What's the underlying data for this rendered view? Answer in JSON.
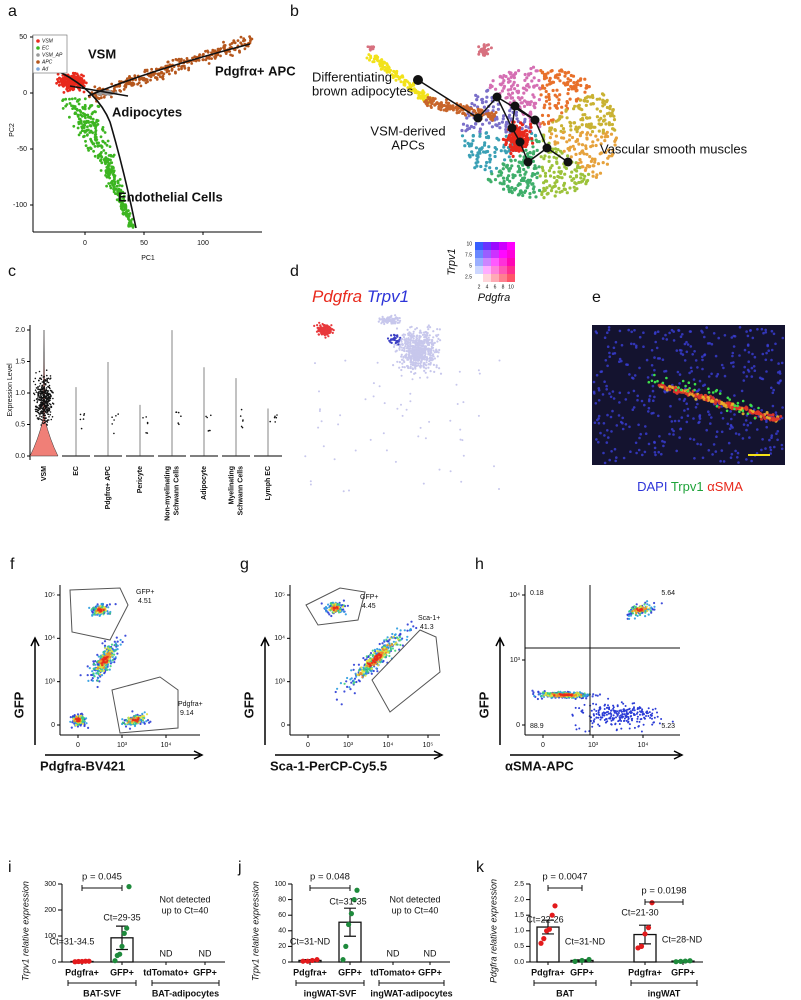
{
  "figure": {
    "a": {
      "letter": "a",
      "legend": [
        {
          "name": "VSM",
          "color": "#e8291c"
        },
        {
          "name": "EC",
          "color": "#3cb521"
        },
        {
          "name": "VSM_AP",
          "color": "#9a9a9a"
        },
        {
          "name": "APC",
          "color": "#b5561c"
        },
        {
          "name": "Ad",
          "color": "#7fa7d9"
        }
      ],
      "labels": [
        "VSM",
        "Pdgfrα+ APC",
        "Adipocytes",
        "Endothelial Cells"
      ],
      "xlabel": "PC1",
      "ylabel": "PC2",
      "xticks": [
        "0",
        "50",
        "100"
      ],
      "yticks": [
        "50",
        "0",
        "-50",
        "-100"
      ]
    },
    "b": {
      "letter": "b",
      "labels": [
        [
          "Differentiating",
          "brown adipocytes"
        ],
        [
          "VSM-derived",
          "APCs"
        ],
        [
          "Vascular smooth muscles"
        ]
      ]
    },
    "c": {
      "letter": "c",
      "ylabel": "Expression Level",
      "yticks": [
        "2.0",
        "1.5",
        "1.0",
        "0.5",
        "0.0"
      ],
      "categories": [
        [
          "VSM"
        ],
        [
          "EC"
        ],
        [
          "Pdgfrα+ APC"
        ],
        [
          "Pericyte"
        ],
        [
          "Non-myelinating",
          "Schwann Cells"
        ],
        [
          "Adipocyte"
        ],
        [
          "Myelinating",
          "Schwann Cells"
        ],
        [
          "Lymph EC"
        ]
      ]
    },
    "d": {
      "letter": "d",
      "title": [
        "Pdgfra",
        "Trpv1"
      ],
      "key_xlabel": "Pdgfra",
      "key_ylabel": "Trpv1",
      "key_xticks": [
        "2",
        "4",
        "6",
        "8",
        "10"
      ],
      "key_yticks": [
        "10",
        "7.5",
        "5",
        "2.5"
      ]
    },
    "e": {
      "letter": "e",
      "stains": [
        "DAPI",
        "Trpv1",
        "αSMA"
      ]
    },
    "f": {
      "letter": "f",
      "gates": [
        [
          "GFP+",
          "4.51"
        ],
        [
          "Pdgfra+",
          "9.14"
        ]
      ],
      "xlabel": "Pdgfra-BV421",
      "ylabel": "GFP",
      "yticks": [
        "10⁵",
        "10⁴",
        "10³",
        "0"
      ],
      "xticks": [
        "0",
        "10³",
        "10⁴"
      ]
    },
    "g": {
      "letter": "g",
      "gates": [
        [
          "GFP+",
          "4.45"
        ],
        [
          "Sca-1+",
          "41.3"
        ]
      ],
      "xlabel": "Sca-1-PerCP-Cy5.5",
      "ylabel": "GFP",
      "yticks": [
        "10⁵",
        "10⁴",
        "10³",
        "0"
      ],
      "xticks": [
        "0",
        "10³",
        "10⁴",
        "10⁵"
      ]
    },
    "h": {
      "letter": "h",
      "quadrants": [
        "0.18",
        "5.64",
        "88.9",
        "5.23"
      ],
      "xlabel": "αSMA-APC",
      "ylabel": "GFP",
      "yticks": [
        "10⁴",
        "10³",
        "0"
      ],
      "xticks": [
        "0",
        "10³",
        "10⁴"
      ]
    }
  },
  "chart_data": [
    {
      "type": "bar",
      "panel": "i",
      "ylabel": "Trpv1 relative expression",
      "categories": [
        "Pdgfra+",
        "GFP+",
        "tdTomato+",
        "GFP+"
      ],
      "values": [
        2,
        93,
        null,
        null
      ],
      "errors": [
        1,
        45,
        null,
        null
      ],
      "points": [
        [
          1,
          2,
          2,
          3,
          3
        ],
        [
          5,
          25,
          30,
          60,
          110,
          130,
          290
        ],
        null,
        null
      ],
      "point_colors": [
        "#e31a1c",
        "#1e8a3c",
        "#1e8a3c",
        "#1e8a3c"
      ],
      "ylim": [
        0,
        300
      ],
      "yticks": [
        0,
        100,
        200,
        300
      ],
      "pvalues": [
        "p = 0.045"
      ],
      "ct_labels": [
        "Ct=31-34.5",
        "Ct=29-35",
        null,
        null
      ],
      "nd_labels": [
        null,
        null,
        "ND",
        "ND"
      ],
      "note": [
        "Not detected",
        "up to Ct=40"
      ],
      "groups": [
        "BAT-SVF",
        "BAT-adipocytes"
      ]
    },
    {
      "type": "bar",
      "panel": "j",
      "ylabel": "Trpv1 relative expression",
      "categories": [
        "Pdgfra+",
        "GFP+",
        "tdTomato+",
        "GFP+"
      ],
      "values": [
        2,
        51,
        null,
        null
      ],
      "errors": [
        1,
        18,
        null,
        null
      ],
      "points": [
        [
          1,
          1,
          2,
          3
        ],
        [
          3,
          20,
          48,
          62,
          80,
          92
        ],
        null,
        null
      ],
      "point_colors": [
        "#e31a1c",
        "#1e8a3c",
        "#1e8a3c",
        "#1e8a3c"
      ],
      "ylim": [
        0,
        100
      ],
      "yticks": [
        0,
        20,
        40,
        60,
        80,
        100
      ],
      "pvalues": [
        "p = 0.048"
      ],
      "ct_labels": [
        "Ct=31-ND",
        "Ct=31-35",
        null,
        null
      ],
      "nd_labels": [
        null,
        null,
        "ND",
        "ND"
      ],
      "note": [
        "Not detected",
        "up to Ct=40"
      ],
      "groups": [
        "ingWAT-SVF",
        "ingWAT-adipocytes"
      ]
    },
    {
      "type": "bar",
      "panel": "k",
      "ylabel": "Pdgfra relative expression",
      "categories": [
        "Pdgfra+",
        "GFP+",
        "Pdgfra+",
        "GFP+"
      ],
      "values": [
        1.12,
        0.05,
        0.88,
        0.03
      ],
      "errors": [
        0.22,
        0.02,
        0.3,
        0.01
      ],
      "points": [
        [
          0.6,
          0.75,
          1.0,
          1.05,
          1.5,
          1.8
        ],
        [
          0.02,
          0.05,
          0.08
        ],
        [
          0.45,
          0.5,
          0.9,
          1.1,
          1.9
        ],
        [
          0.01,
          0.02,
          0.03,
          0.04
        ]
      ],
      "point_colors": [
        "#e31a1c",
        "#1e8a3c",
        "#e31a1c",
        "#1e8a3c"
      ],
      "ylim": [
        0,
        2.5
      ],
      "yticks": [
        {
          "value": 0,
          "label": "0.0"
        },
        0.5,
        {
          "value": 1,
          "label": "1.0"
        },
        1.5,
        {
          "value": 2,
          "label": "2.0"
        },
        2.5
      ],
      "pvalues": [
        "p = 0.0047",
        "p = 0.0198"
      ],
      "ct_labels": [
        "Ct=22-26",
        "Ct=31-ND",
        "Ct=21-30",
        "Ct=28-ND"
      ],
      "groups": [
        "BAT",
        "ingWAT"
      ]
    }
  ]
}
